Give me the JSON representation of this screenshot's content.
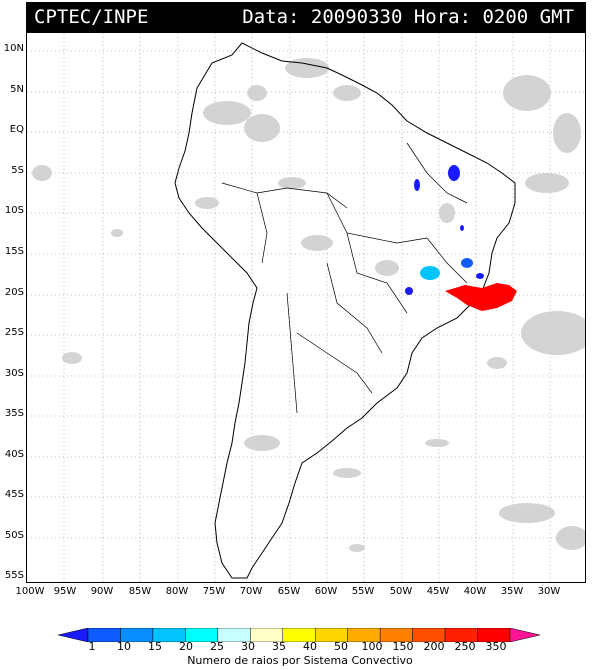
{
  "header": {
    "left": "CPTEC/INPE",
    "right": "Data: 20090330 Hora: 0200 GMT"
  },
  "map": {
    "lat_labels": [
      "10N",
      "5N",
      "EQ",
      "5S",
      "10S",
      "15S",
      "20S",
      "25S",
      "30S",
      "35S",
      "40S",
      "45S",
      "50S",
      "55S"
    ],
    "lon_labels": [
      "100W",
      "95W",
      "90W",
      "85W",
      "80W",
      "75W",
      "70W",
      "65W",
      "60W",
      "55W",
      "50W",
      "45W",
      "40W",
      "35W",
      "30W"
    ],
    "colors": {
      "cloud": "#cfcfcf",
      "border": "#000000",
      "grid": "#888888"
    }
  },
  "colorbar": {
    "labels": [
      "1",
      "10",
      "15",
      "20",
      "25",
      "30",
      "35",
      "40",
      "50",
      "100",
      "150",
      "200",
      "250",
      "350"
    ],
    "colors": [
      "#1a1aff",
      "#0e5cff",
      "#0a8eff",
      "#00c3ff",
      "#00ffff",
      "#c8ffff",
      "#ffffc8",
      "#ffff00",
      "#ffd700",
      "#ffaa00",
      "#ff8000",
      "#ff5000",
      "#ff2000",
      "#ff0000",
      "#ff1493"
    ],
    "title": "Numero de raios por Sistema Convectivo"
  }
}
